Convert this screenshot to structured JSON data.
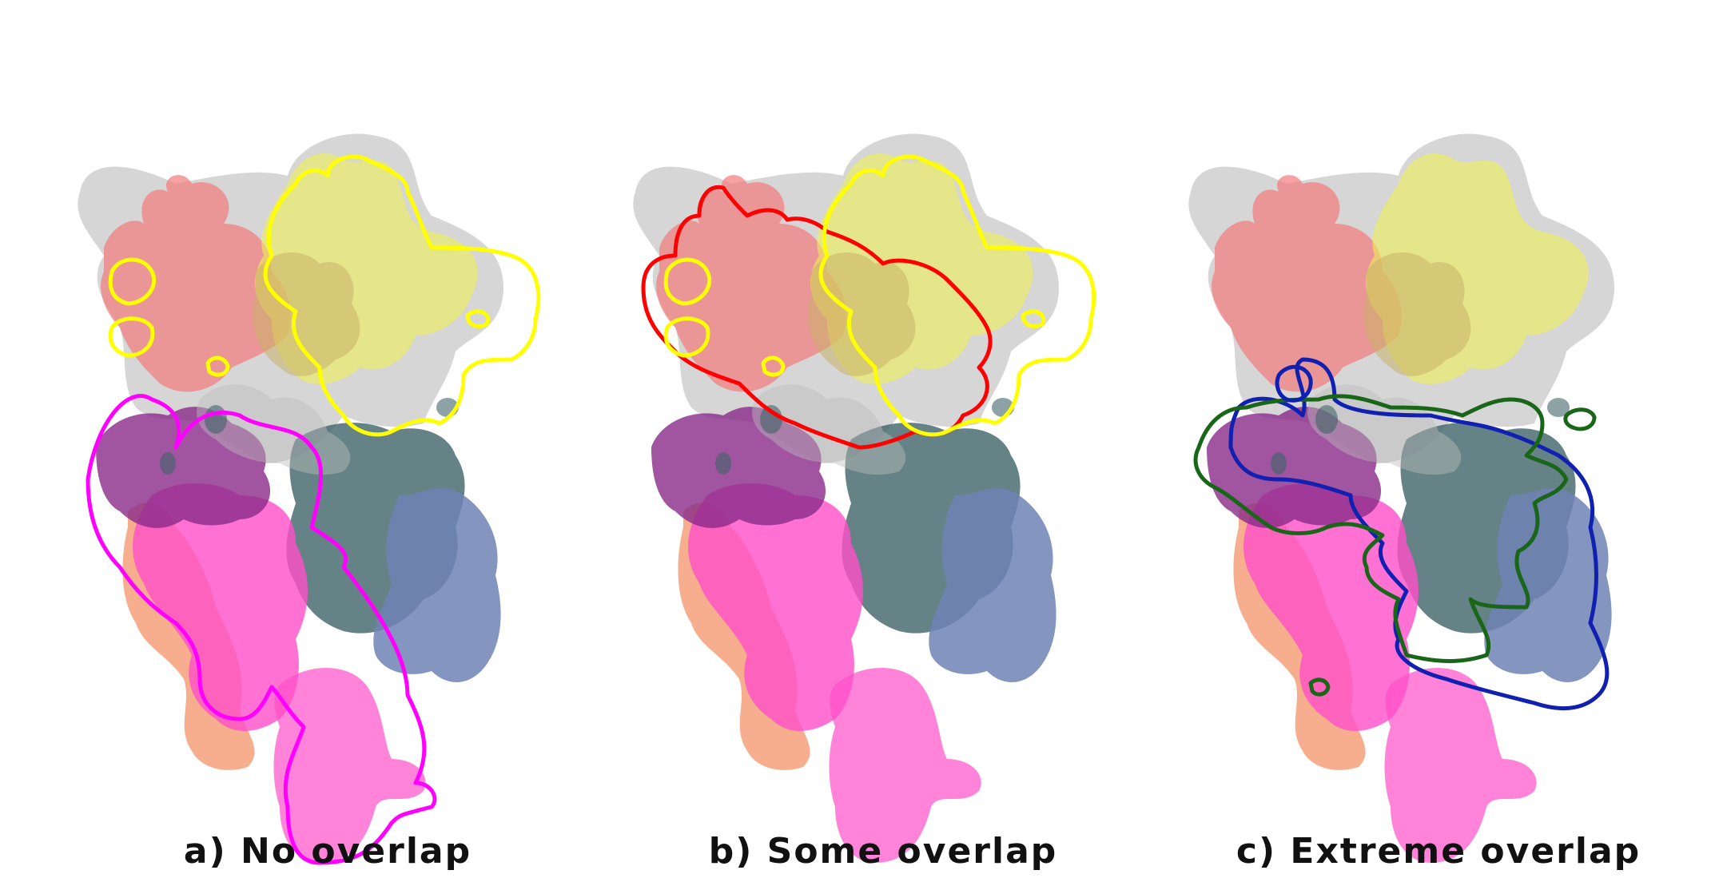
{
  "panels": [
    {
      "id": "a",
      "caption": "a) No overlap",
      "outlines": [
        "magenta",
        "yellow"
      ],
      "outline_colors": [
        "#ff00ff",
        "#ffff00"
      ]
    },
    {
      "id": "b",
      "caption": "b) Some overlap",
      "outlines": [
        "red",
        "yellow"
      ],
      "outline_colors": [
        "#ff0000",
        "#ffff00"
      ]
    },
    {
      "id": "c",
      "caption": "c) Extreme overlap",
      "outlines": [
        "blue",
        "green"
      ],
      "outline_colors": [
        "#1020b0",
        "#1a6618"
      ]
    }
  ],
  "region_colors": {
    "grey": "#bdbdbd",
    "salmon": "#f47a7a",
    "yellow": "#eeee55",
    "khaki": "#c8b26a",
    "orange": "#f4a07a",
    "magenta": "#ff4fc8",
    "purple": "#8a2a8a",
    "teal": "#3f6468",
    "slate_blue": "#6f83b4"
  }
}
